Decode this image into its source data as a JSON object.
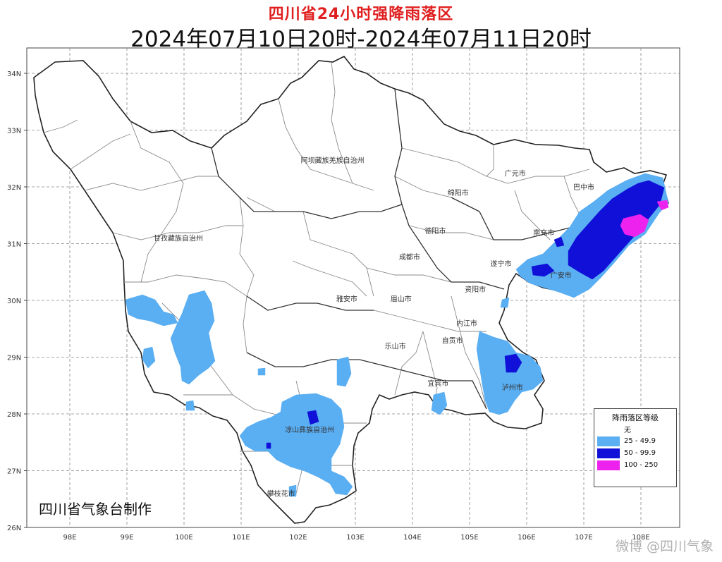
{
  "title": "四川省24小时强降雨落区",
  "subtitle": "2024年07月10日20时-2024年07月11日20时",
  "lat_labels": [
    "34N",
    "33N",
    "32N",
    "31N",
    "30N",
    "29N",
    "28N",
    "27N",
    "26N"
  ],
  "lon_labels": [
    "98E",
    "99E",
    "100E",
    "101E",
    "102E",
    "103E",
    "104E",
    "105E",
    "106E",
    "107E",
    "108E"
  ],
  "cities": [
    {
      "name": "阿坝藏族羌族自治州",
      "lon": 102.6,
      "lat": 32.42
    },
    {
      "name": "甘孜藏族自治州",
      "lon": 99.9,
      "lat": 31.05
    },
    {
      "name": "广元市",
      "lon": 105.8,
      "lat": 32.19
    },
    {
      "name": "巴中市",
      "lon": 107.0,
      "lat": 31.95
    },
    {
      "name": "绵阳市",
      "lon": 104.8,
      "lat": 31.85
    },
    {
      "name": "德阳市",
      "lon": 104.4,
      "lat": 31.18
    },
    {
      "name": "南充市",
      "lon": 106.3,
      "lat": 31.15
    },
    {
      "name": "成都市",
      "lon": 103.95,
      "lat": 30.72
    },
    {
      "name": "遂宁市",
      "lon": 105.55,
      "lat": 30.6
    },
    {
      "name": "广安市",
      "lon": 106.6,
      "lat": 30.4
    },
    {
      "name": "资阳市",
      "lon": 105.1,
      "lat": 30.15
    },
    {
      "name": "雅安市",
      "lon": 102.85,
      "lat": 29.98
    },
    {
      "name": "眉山市",
      "lon": 103.8,
      "lat": 29.98
    },
    {
      "name": "内江市",
      "lon": 104.95,
      "lat": 29.55
    },
    {
      "name": "自贡市",
      "lon": 104.7,
      "lat": 29.25
    },
    {
      "name": "乐山市",
      "lon": 103.7,
      "lat": 29.15
    },
    {
      "name": "泸州市",
      "lon": 105.75,
      "lat": 28.42
    },
    {
      "name": "宜宾市",
      "lon": 104.45,
      "lat": 28.5
    },
    {
      "name": "凉山彝族自治州",
      "lon": 102.2,
      "lat": 27.68
    },
    {
      "name": "攀枝花市",
      "lon": 101.7,
      "lat": 26.55
    }
  ],
  "legend": {
    "title": "降雨落区等级",
    "items": [
      {
        "label": "无",
        "color": "#ffffff"
      },
      {
        "label": "25 - 49.9",
        "color": "#5aaef2"
      },
      {
        "label": "50 - 99.9",
        "color": "#1010d8"
      },
      {
        "label": "100 - 250",
        "color": "#ee22ee"
      }
    ]
  },
  "credit": "四川省气象台制作",
  "watermark": "微博 @四川气象"
}
